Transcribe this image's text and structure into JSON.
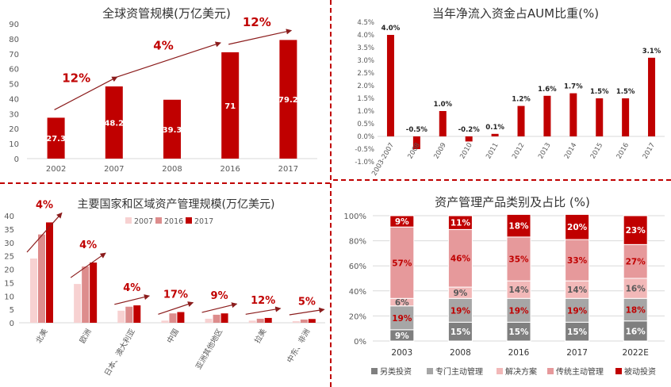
{
  "colors": {
    "accent": "#c00000",
    "grid": "#d9d9d9",
    "axis_text": "#595959",
    "s2007": "#f7d1d1",
    "s2016": "#dd8c8c",
    "s2017": "#c00000",
    "alt": "#7f7f7f",
    "special": "#a6a6a6",
    "solution": "#f2b8b8",
    "traditional": "#e6999b",
    "passive": "#c00000"
  },
  "chart_data": [
    {
      "id": "tl",
      "type": "bar",
      "title": "全球资管规模(万亿美元)",
      "categories": [
        "2002",
        "2007",
        "2008",
        "2016",
        "2017"
      ],
      "values": [
        27.3,
        48.2,
        39.3,
        71,
        79.2
      ],
      "value_labels": [
        "27.3",
        "48.2",
        "39.3",
        "71",
        "79.2"
      ],
      "yticks": [
        "0",
        "10",
        "20",
        "30",
        "40",
        "50",
        "60",
        "70",
        "80",
        "90"
      ],
      "ylim": [
        0,
        90
      ],
      "annotations": [
        "12%",
        "4%",
        "12%"
      ]
    },
    {
      "id": "tr",
      "type": "bar",
      "title": "当年净流入资金占AUM比重(%)",
      "categories": [
        "2003-2007",
        "2008",
        "2009",
        "2010",
        "2011",
        "2012",
        "2013",
        "2014",
        "2015",
        "2016",
        "2017"
      ],
      "values": [
        4.0,
        -0.5,
        1.0,
        -0.2,
        0.1,
        1.2,
        1.6,
        1.7,
        1.5,
        1.5,
        3.1
      ],
      "value_labels": [
        "4.0%",
        "-0.5%",
        "1.0%",
        "-0.2%",
        "0.1%",
        "1.2%",
        "1.6%",
        "1.7%",
        "1.5%",
        "1.5%",
        "3.1%"
      ],
      "yticks": [
        "-1.0%",
        "-0.5%",
        "0.0%",
        "0.5%",
        "1.0%",
        "1.5%",
        "2.0%",
        "2.5%",
        "3.0%",
        "3.5%",
        "4.0%",
        "4.5%"
      ],
      "ylim": [
        -1.0,
        4.5
      ]
    },
    {
      "id": "bl",
      "type": "bar",
      "title": "主要国家和区域资产管理规模(万亿美元)",
      "categories": [
        "北美",
        "欧洲",
        "日本、澳大利亚",
        "中国",
        "亚洲其他地区",
        "拉美",
        "中东、非洲"
      ],
      "series": [
        {
          "name": "2007",
          "values": [
            24,
            14.5,
            4.5,
            0.8,
            1.5,
            0.8,
            0.6
          ]
        },
        {
          "name": "2016",
          "values": [
            33,
            21,
            6,
            3.5,
            3,
            1.5,
            1.2
          ]
        },
        {
          "name": "2017",
          "values": [
            37.5,
            22.5,
            6.5,
            4,
            3.5,
            1.8,
            1.4
          ]
        }
      ],
      "growth_labels": [
        "4%",
        "4%",
        "4%",
        "17%",
        "9%",
        "12%",
        "5%"
      ],
      "yticks": [
        "0",
        "5",
        "10",
        "15",
        "20",
        "25",
        "30",
        "35",
        "40"
      ],
      "ylim": [
        0,
        40
      ]
    },
    {
      "id": "br",
      "type": "bar",
      "stacked": true,
      "title": "资产管理产品类别及占比 (%)",
      "categories": [
        "2003",
        "2008",
        "2016",
        "2017",
        "2022E"
      ],
      "series": [
        {
          "name": "另类投资",
          "values": [
            9,
            15,
            15,
            15,
            16
          ],
          "labels": [
            "9%",
            "15%",
            "15%",
            "15%",
            "16%"
          ]
        },
        {
          "name": "专门主动管理",
          "values": [
            19,
            19,
            19,
            19,
            18
          ],
          "labels": [
            "19%",
            "19%",
            "19%",
            "19%",
            "18%"
          ]
        },
        {
          "name": "解决方案",
          "values": [
            6,
            9,
            14,
            14,
            16
          ],
          "labels": [
            "6%",
            "9%",
            "14%",
            "14%",
            "16%"
          ]
        },
        {
          "name": "传统主动管理",
          "values": [
            57,
            46,
            35,
            33,
            27
          ],
          "labels": [
            "57%",
            "46%",
            "35%",
            "33%",
            "27%"
          ]
        },
        {
          "name": "被动投资",
          "values": [
            9,
            11,
            18,
            20,
            23
          ],
          "labels": [
            "9%",
            "11%",
            "18%",
            "20%",
            "23%"
          ]
        }
      ],
      "yticks": [
        "0%",
        "20%",
        "40%",
        "60%",
        "80%",
        "100%"
      ],
      "ylim": [
        0,
        100
      ],
      "legend_position": "bottom"
    }
  ]
}
